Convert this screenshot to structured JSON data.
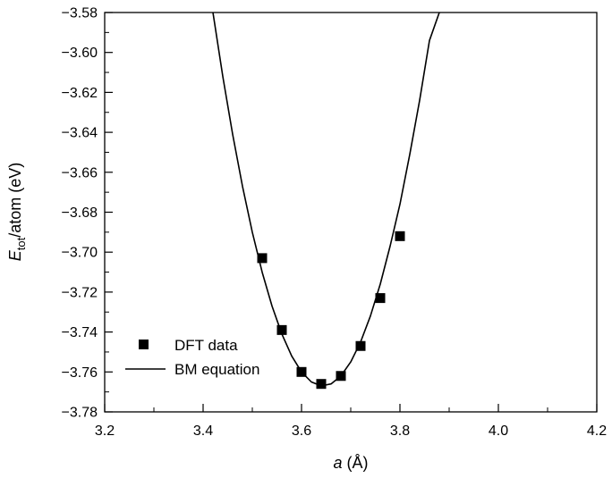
{
  "chart_data": {
    "type": "scatter",
    "xlabel": {
      "main": "a",
      "unit": " (Å)"
    },
    "ylabel": {
      "main": "E",
      "sub": "tot",
      "rest": "/atom (eV)"
    },
    "xlim": [
      3.2,
      4.2
    ],
    "ylim": [
      -3.78,
      -3.58
    ],
    "x_ticks": [
      3.2,
      3.4,
      3.6,
      3.8,
      4.0,
      4.2
    ],
    "x_tick_labels": [
      "3.2",
      "3.4",
      "3.6",
      "3.8",
      "4.0",
      "4.2"
    ],
    "y_ticks": [
      -3.58,
      -3.6,
      -3.62,
      -3.64,
      -3.66,
      -3.68,
      -3.7,
      -3.72,
      -3.74,
      -3.76,
      -3.78
    ],
    "y_tick_labels": [
      "−3.58",
      "−3.60",
      "−3.62",
      "−3.64",
      "−3.66",
      "−3.68",
      "−3.70",
      "−3.72",
      "−3.74",
      "−3.76",
      "−3.78"
    ],
    "grid": false,
    "legend_position": "bottom-left",
    "series": [
      {
        "name": "DFT data",
        "kind": "scatter",
        "marker": "square",
        "color": "#000000",
        "x": [
          3.52,
          3.56,
          3.6,
          3.64,
          3.68,
          3.72,
          3.76,
          3.8
        ],
        "y": [
          -3.703,
          -3.739,
          -3.76,
          -3.766,
          -3.762,
          -3.747,
          -3.723,
          -3.692
        ]
      },
      {
        "name": "BM equation",
        "kind": "line",
        "color": "#000000",
        "x": [
          3.42,
          3.44,
          3.46,
          3.48,
          3.5,
          3.52,
          3.54,
          3.56,
          3.58,
          3.6,
          3.62,
          3.64,
          3.66,
          3.68,
          3.7,
          3.72,
          3.74,
          3.76,
          3.78,
          3.8,
          3.82,
          3.84,
          3.86,
          3.88
        ],
        "y": [
          -3.58,
          -3.612,
          -3.641,
          -3.667,
          -3.69,
          -3.71,
          -3.727,
          -3.741,
          -3.752,
          -3.76,
          -3.765,
          -3.767,
          -3.766,
          -3.762,
          -3.755,
          -3.745,
          -3.732,
          -3.716,
          -3.697,
          -3.676,
          -3.651,
          -3.624,
          -3.594,
          -3.58
        ]
      }
    ]
  }
}
